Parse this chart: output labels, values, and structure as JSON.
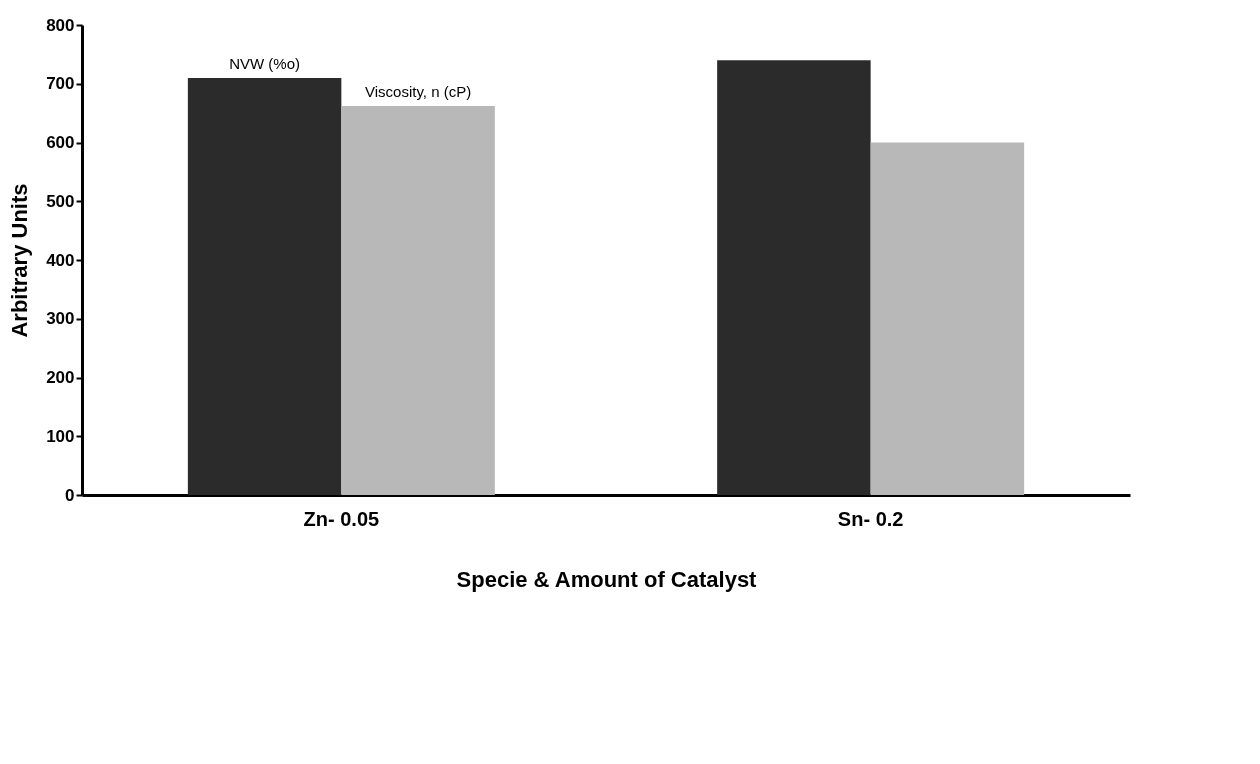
{
  "chart_data": {
    "type": "bar",
    "xlabel": "Specie & Amount of Catalyst",
    "ylabel": "Arbitrary Units",
    "categories": [
      "Zn-  0.05",
      "Sn-  0.2"
    ],
    "series": [
      {
        "name": "NVW (%o)",
        "color": "#2b2b2b",
        "values": [
          710,
          740
        ]
      },
      {
        "name": "Viscosity, n (cP)",
        "color": "#b8b8b8",
        "values": [
          662,
          600
        ]
      }
    ],
    "ylim": [
      0,
      800
    ],
    "yticks": [
      0,
      100,
      200,
      300,
      400,
      500,
      600,
      700,
      800
    ],
    "grid": false,
    "legend": false
  }
}
